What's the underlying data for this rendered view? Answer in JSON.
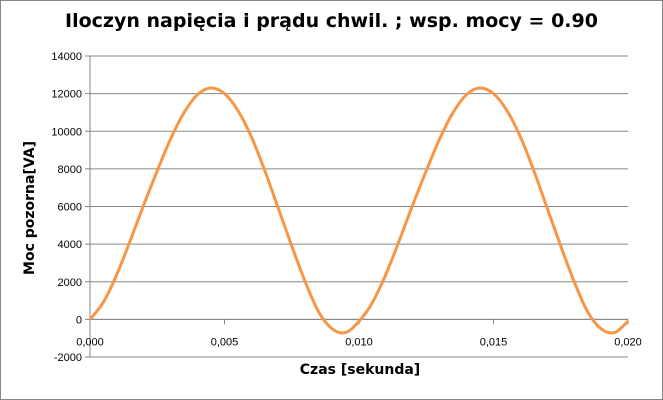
{
  "chart_data": {
    "type": "line",
    "title": "Iloczyn napięcia i prądu chwil. ; wsp. mocy = 0.90",
    "xlabel": "Czas [sekunda]",
    "ylabel": "Moc pozorna[VA]",
    "xlim": [
      0,
      0.02
    ],
    "ylim": [
      -2000,
      14000
    ],
    "x_ticks": [
      {
        "value": 0.0,
        "label": "0,000"
      },
      {
        "value": 0.005,
        "label": "0,005"
      },
      {
        "value": 0.01,
        "label": "0,010"
      },
      {
        "value": 0.015,
        "label": "0,015"
      },
      {
        "value": 0.02,
        "label": "0,020"
      }
    ],
    "y_ticks": [
      {
        "value": -2000,
        "label": "-2000"
      },
      {
        "value": 0,
        "label": "0"
      },
      {
        "value": 2000,
        "label": "2000"
      },
      {
        "value": 4000,
        "label": "4000"
      },
      {
        "value": 6000,
        "label": "6000"
      },
      {
        "value": 8000,
        "label": "8000"
      },
      {
        "value": 10000,
        "label": "10000"
      },
      {
        "value": 12000,
        "label": "12000"
      },
      {
        "value": 14000,
        "label": "14000"
      }
    ],
    "grid": true,
    "legend": "none",
    "series": [
      {
        "color": "#f79646",
        "x": [
          0,
          0.0005,
          0.001,
          0.0015,
          0.002,
          0.0025,
          0.003,
          0.0035,
          0.004,
          0.0045,
          0.005,
          0.0055,
          0.006,
          0.0065,
          0.007,
          0.0075,
          0.008,
          0.0085,
          0.009,
          0.0095,
          0.01,
          0.0105,
          0.011,
          0.0115,
          0.012,
          0.0125,
          0.013,
          0.0135,
          0.014,
          0.0145,
          0.015,
          0.0155,
          0.016,
          0.0165,
          0.017,
          0.0175,
          0.018,
          0.0185,
          0.019,
          0.0195,
          0.02
        ],
        "y": [
          0,
          920,
          2400,
          4200,
          6100,
          7900,
          9600,
          11000,
          11950,
          12300,
          12000,
          11100,
          9700,
          7900,
          5900,
          3900,
          2000,
          400,
          -500,
          -700,
          -100,
          900,
          2400,
          4200,
          6100,
          7900,
          9600,
          11000,
          11950,
          12300,
          12000,
          11100,
          9700,
          7900,
          5900,
          3900,
          2000,
          400,
          -500,
          -700,
          -100
        ]
      }
    ]
  }
}
